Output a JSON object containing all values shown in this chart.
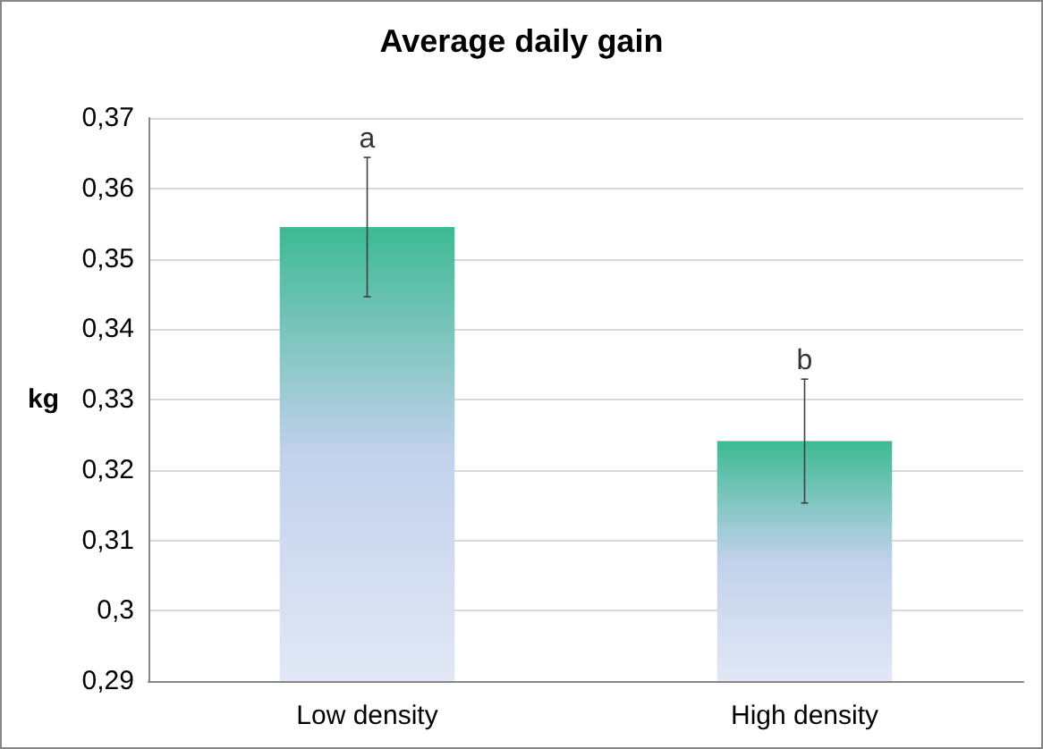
{
  "chart_data": {
    "type": "bar",
    "title": "Average daily gain",
    "ylabel": "kg",
    "categories": [
      "Low density",
      "High density"
    ],
    "values": [
      0.3545,
      0.3241
    ],
    "errors": [
      0.0099,
      0.0088
    ],
    "color": "#3dba93",
    "ylim": [
      0.29,
      0.37
    ],
    "yticks": [
      {
        "value": 0.29,
        "label": "0,29"
      },
      {
        "value": 0.3,
        "label": "0,3"
      },
      {
        "value": 0.31,
        "label": "0,31"
      },
      {
        "value": 0.32,
        "label": "0,32"
      },
      {
        "value": 0.33,
        "label": "0,33"
      },
      {
        "value": 0.34,
        "label": "0,34"
      },
      {
        "value": 0.35,
        "label": "0,35"
      },
      {
        "value": 0.36,
        "label": "0,36"
      },
      {
        "value": 0.37,
        "label": "0,37"
      }
    ],
    "annotations": [
      {
        "text": "a",
        "x": "Low density",
        "y": 0.3644
      },
      {
        "text": "b",
        "x": "High density",
        "y": 0.3329
      }
    ],
    "grid": "y"
  }
}
